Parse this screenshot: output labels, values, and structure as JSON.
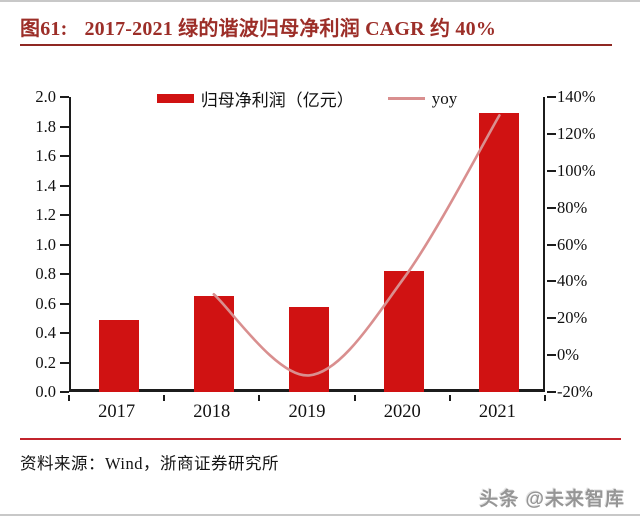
{
  "figure": {
    "label": "图61:",
    "title": "2017-2021 绿的谐波归母净利润 CAGR 约 40%"
  },
  "chart_data": {
    "type": "bar",
    "title": "2017-2021 绿的谐波归母净利润 CAGR 约 40%",
    "categories": [
      "2017",
      "2018",
      "2019",
      "2020",
      "2021"
    ],
    "series": [
      {
        "name": "归母净利润（亿元）",
        "type": "bar",
        "axis": "left",
        "values": [
          0.49,
          0.65,
          0.58,
          0.82,
          1.89
        ]
      },
      {
        "name": "yoy",
        "type": "line",
        "axis": "right",
        "unit": "%",
        "values": [
          null,
          33,
          -11,
          42,
          130
        ]
      }
    ],
    "left_axis": {
      "min": 0.0,
      "max": 2.0,
      "step": 0.2,
      "tick_labels": [
        "2.0",
        "1.8",
        "1.6",
        "1.4",
        "1.2",
        "1.0",
        "0.8",
        "0.6",
        "0.4",
        "0.2",
        "0.0"
      ]
    },
    "right_axis": {
      "min": -20,
      "max": 140,
      "step": 20,
      "unit": "%",
      "tick_labels": [
        "140%",
        "120%",
        "100%",
        "80%",
        "60%",
        "40%",
        "20%",
        "0%",
        "-20%"
      ]
    },
    "legend_position": "top",
    "grid": false
  },
  "footer": {
    "source": "资料来源：Wind，浙商证券研究所"
  },
  "watermark": {
    "text": "头条 @未来智库"
  },
  "colors": {
    "bar_red": "#d01212",
    "yoy_line": "#d98f8f",
    "title_red": "#9c2e28",
    "title_rule": "#8f2823",
    "footer_rule": "#c2242c",
    "axis": "#1c1c1c",
    "watermark_gray": "#969696"
  }
}
